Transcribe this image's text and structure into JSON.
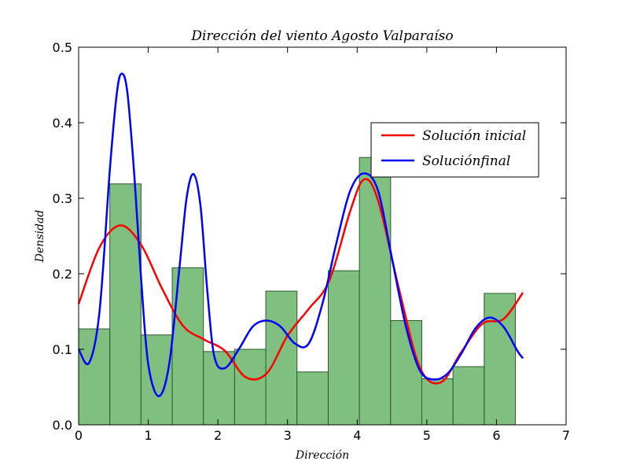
{
  "chart_data": {
    "type": "bar",
    "title": "Dirección del viento Agosto Valparaíso",
    "xlabel": "Dirección",
    "ylabel": "Densidad",
    "xlim": [
      0,
      7
    ],
    "ylim": [
      0,
      0.5
    ],
    "xticks": [
      "0",
      "1",
      "2",
      "3",
      "4",
      "5",
      "6",
      "7"
    ],
    "yticks": [
      "0.0",
      "0.1",
      "0.2",
      "0.3",
      "0.4",
      "0.5"
    ],
    "grid": false,
    "legend_position": "upper-right",
    "histogram": {
      "bin_edges": [
        0,
        0.448,
        0.896,
        1.344,
        1.792,
        2.24,
        2.688,
        3.136,
        3.584,
        4.032,
        4.48,
        4.928,
        5.376,
        5.824,
        6.272
      ],
      "values": [
        0.127,
        0.319,
        0.119,
        0.208,
        0.097,
        0.1,
        0.177,
        0.07,
        0.204,
        0.354,
        0.138,
        0.061,
        0.077,
        0.174
      ],
      "color": "#7fbf7f",
      "edge_color": "#2e5a2e"
    },
    "series": [
      {
        "name": "Solución inicial",
        "color": "#ff0000",
        "x": [
          0.0,
          0.3,
          0.6,
          0.9,
          1.2,
          1.5,
          1.8,
          2.1,
          2.4,
          2.7,
          3.0,
          3.3,
          3.6,
          3.9,
          4.1,
          4.3,
          4.6,
          4.9,
          5.2,
          5.5,
          5.8,
          6.1,
          6.38
        ],
        "y": [
          0.16,
          0.235,
          0.264,
          0.238,
          0.18,
          0.131,
          0.113,
          0.098,
          0.063,
          0.068,
          0.118,
          0.153,
          0.191,
          0.283,
          0.325,
          0.297,
          0.18,
          0.076,
          0.056,
          0.097,
          0.134,
          0.14,
          0.175
        ]
      },
      {
        "name": "Soluciónfinal",
        "color": "#0000ff",
        "x": [
          0.0,
          0.15,
          0.3,
          0.45,
          0.55,
          0.62,
          0.7,
          0.8,
          0.9,
          1.0,
          1.15,
          1.3,
          1.45,
          1.55,
          1.65,
          1.75,
          1.85,
          1.95,
          2.1,
          2.3,
          2.5,
          2.7,
          2.9,
          3.1,
          3.3,
          3.5,
          3.7,
          3.9,
          4.1,
          4.3,
          4.5,
          4.7,
          4.9,
          5.1,
          5.3,
          5.5,
          5.7,
          5.9,
          6.1,
          6.3,
          6.38
        ],
        "y": [
          0.1,
          0.082,
          0.15,
          0.34,
          0.44,
          0.465,
          0.44,
          0.33,
          0.19,
          0.08,
          0.038,
          0.08,
          0.21,
          0.3,
          0.332,
          0.29,
          0.175,
          0.09,
          0.075,
          0.1,
          0.13,
          0.138,
          0.13,
          0.108,
          0.107,
          0.16,
          0.24,
          0.31,
          0.333,
          0.31,
          0.22,
          0.13,
          0.072,
          0.06,
          0.068,
          0.095,
          0.128,
          0.142,
          0.13,
          0.098,
          0.088
        ]
      }
    ]
  }
}
